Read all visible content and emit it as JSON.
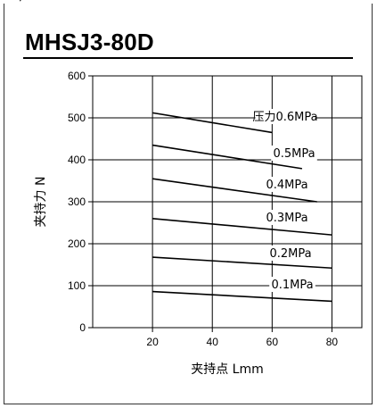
{
  "chart_data": {
    "type": "line",
    "title": "MHSJ3-80D",
    "xlabel": "夹持点 Lmm",
    "ylabel": "夹持力 N",
    "xlim": [
      0,
      90
    ],
    "ylim": [
      0,
      600
    ],
    "x_ticks": [
      "20",
      "40",
      "60",
      "80"
    ],
    "y_ticks": [
      "0",
      "100",
      "200",
      "300",
      "400",
      "500",
      "600"
    ],
    "grid": true,
    "series": [
      {
        "name": "压力0.6MPa",
        "x": [
          20,
          60
        ],
        "y": [
          512,
          465
        ]
      },
      {
        "name": "0.5MPa",
        "x": [
          20,
          70
        ],
        "y": [
          435,
          379
        ]
      },
      {
        "name": "0.4MPa",
        "x": [
          20,
          75
        ],
        "y": [
          355,
          300
        ]
      },
      {
        "name": "0.3MPa",
        "x": [
          20,
          80
        ],
        "y": [
          260,
          221
        ]
      },
      {
        "name": "0.2MPa",
        "x": [
          20,
          80
        ],
        "y": [
          168,
          142
        ]
      },
      {
        "name": "0.1MPa",
        "x": [
          20,
          80
        ],
        "y": [
          86,
          63
        ]
      }
    ]
  }
}
